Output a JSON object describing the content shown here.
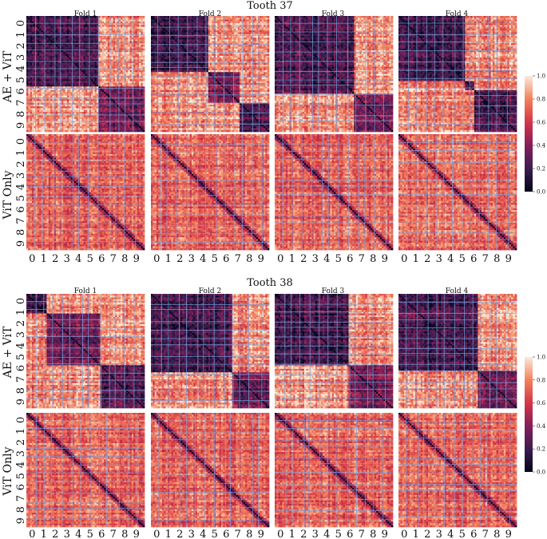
{
  "chart_data": [
    {
      "type": "heatmap",
      "title": "Tooth 37",
      "columns": [
        "Fold 1",
        "Fold 2",
        "Fold 3",
        "Fold 4"
      ],
      "rows": [
        "AE + ViT",
        "ViT Only"
      ],
      "tick_labels": [
        "0",
        "1",
        "2",
        "3",
        "4",
        "5",
        "6",
        "7",
        "8",
        "9"
      ],
      "colorbar": {
        "ticks": [
          "0.0",
          "0.2",
          "0.4",
          "0.6",
          "0.8",
          "1.0"
        ],
        "range": [
          0,
          1
        ],
        "colormap": "rocket"
      },
      "block_boundaries": {
        "fold_1": [
          0,
          0.6,
          1
        ],
        "fold_2": [
          0,
          0.48,
          0.74,
          1
        ],
        "fold_3": [
          0,
          0.66,
          1
        ],
        "fold_4": [
          0,
          0.55,
          0.63,
          1
        ]
      },
      "grid": "light-blue"
    },
    {
      "type": "heatmap",
      "title": "Tooth 38",
      "columns": [
        "Fold 1",
        "Fold 2",
        "Fold 3",
        "Fold 4"
      ],
      "rows": [
        "AE + ViT",
        "ViT Only"
      ],
      "tick_labels": [
        "0",
        "1",
        "2",
        "3",
        "4",
        "5",
        "6",
        "7",
        "8",
        "9"
      ],
      "colorbar": {
        "ticks": [
          "0.0",
          "0.2",
          "0.4",
          "0.6",
          "0.8",
          "1.0"
        ],
        "range": [
          0,
          1
        ],
        "colormap": "rocket"
      },
      "block_boundaries": {
        "fold_1": [
          0,
          0.17,
          0.62,
          1
        ],
        "fold_2": [
          0,
          0.68,
          1
        ],
        "fold_3": [
          0,
          0.62,
          1
        ],
        "fold_4": [
          0,
          0.66,
          1
        ]
      },
      "grid": "light-blue"
    }
  ]
}
